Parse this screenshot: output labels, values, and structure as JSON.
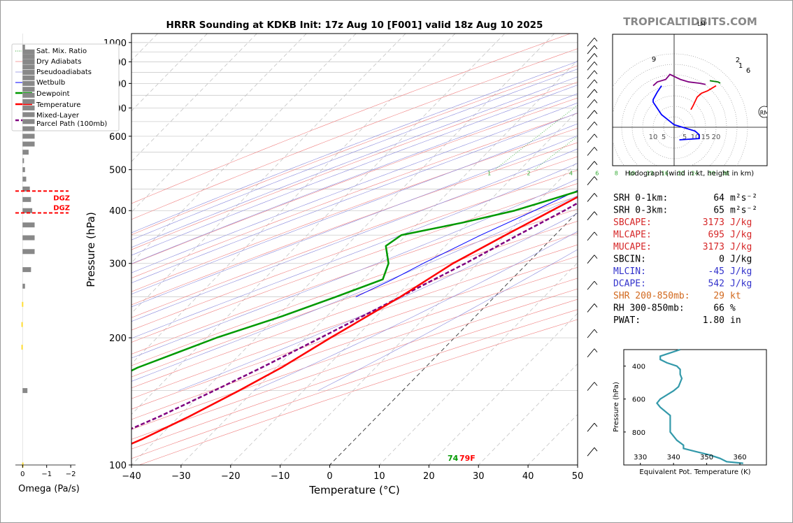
{
  "header": {
    "title": "HRRR Sounding at KDKB Init: 17z Aug 10 [F001] valid 18z Aug 10 2025",
    "watermark": "TROPICALTIDBITS.COM"
  },
  "colors": {
    "temperature": "#ff0000",
    "dewpoint": "#009900",
    "wetbulb": "#0000ff",
    "parcel": "#800080",
    "dry_adiabat": "#f08080",
    "moist_adiabat": "#8a8add",
    "mixing_ratio": "#33aa33",
    "theta_e": "#3399aa",
    "omega_bar": "#888888",
    "omega_yellow": "#ffdd33"
  },
  "chart_data": [
    {
      "type": "line",
      "name": "skew-t",
      "xlabel": "Temperature (°C)",
      "ylabel": "Pressure (hPa)",
      "xlim": [
        -40,
        50
      ],
      "ylim": [
        1050,
        100
      ],
      "y_scale": "log",
      "x_ticks": [
        "−40",
        "−30",
        "−20",
        "−10",
        "0",
        "10",
        "20",
        "30",
        "40",
        "50"
      ],
      "y_ticks": [
        "100",
        "200",
        "300",
        "400",
        "500",
        "600",
        "700",
        "800",
        "900",
        "1000"
      ],
      "legend_position": "top-left",
      "legend": [
        "Sat. Mix. Ratio",
        "Dry Adiabats",
        "Pseudoadiabats",
        "Wetbulb",
        "Dewpoint",
        "Temperature",
        "Mixed-Layer",
        "Parcel Path (100mb)"
      ],
      "mixing_ratio_labels": [
        "1",
        "2",
        "4",
        "6",
        "8",
        "10",
        "13",
        "16",
        "20",
        "24",
        "30",
        "36"
      ],
      "surface_temp_label": "79F",
      "surface_dewpoint_label": "74",
      "series": [
        {
          "name": "Temperature",
          "p": [
            985,
            960,
            930,
            900,
            850,
            800,
            750,
            700,
            650,
            600,
            550,
            500,
            450,
            400,
            350,
            300,
            250,
            200,
            170,
            150,
            130,
            115,
            100
          ],
          "t": [
            26,
            25,
            24.6,
            24,
            22,
            18.4,
            15.6,
            12.6,
            9.6,
            6.8,
            4.4,
            1.8,
            -1.5,
            -5.5,
            -10,
            -15,
            -19,
            -25,
            -29,
            -33,
            -38,
            -43,
            -50
          ]
        },
        {
          "name": "Dewpoint",
          "p": [
            985,
            960,
            930,
            900,
            850,
            800,
            750,
            700,
            650,
            600,
            550,
            500,
            450,
            400,
            375,
            350,
            330,
            300,
            275,
            250,
            225,
            200,
            170,
            150,
            130,
            115,
            100
          ],
          "t": [
            23.5,
            22,
            20,
            18,
            16.5,
            14.5,
            12.5,
            9.4,
            6.5,
            3.8,
            1.7,
            -1,
            -3,
            -13,
            -21,
            -31,
            -32,
            -28,
            -26,
            -32,
            -39,
            -48,
            -58,
            -63,
            -66,
            -70,
            -72
          ]
        },
        {
          "name": "Wetbulb",
          "p": [
            985,
            960,
            930,
            900,
            850,
            800,
            750,
            700,
            650,
            600,
            550,
            500,
            450,
            400,
            350,
            300,
            275,
            250
          ],
          "t": [
            24.2,
            23,
            21.8,
            20.5,
            18.5,
            16,
            13.5,
            10.8,
            8,
            5.2,
            2.4,
            -0.5,
            -4,
            -9,
            -15,
            -21,
            -24,
            -28
          ]
        },
        {
          "name": "Parcel Path",
          "p": [
            985,
            960,
            930,
            900,
            850,
            800,
            750,
            700,
            650,
            600,
            550,
            500,
            450,
            400,
            350,
            300,
            250,
            200,
            170,
            150,
            130,
            115,
            100
          ],
          "t": [
            28.5,
            26,
            23,
            20.3,
            17,
            14.8,
            12.9,
            11,
            9,
            7,
            5,
            3,
            0.5,
            -3,
            -7.5,
            -12.5,
            -19,
            -27,
            -33,
            -38,
            -44,
            -50,
            -58
          ]
        }
      ]
    },
    {
      "type": "bar",
      "name": "omega",
      "xlabel": "Omega (Pa/s)",
      "x_ticks": [
        "0",
        "−1",
        "−2"
      ],
      "xlim": [
        0.3,
        -2.2
      ],
      "dgz_label": "DGZ",
      "dgz_levels": [
        395,
        445
      ],
      "bars": [
        {
          "p": 100,
          "w": -0.02,
          "c": "yellow"
        },
        {
          "p": 150,
          "w": 0.2,
          "c": "grey"
        },
        {
          "p": 190,
          "w": -0.05,
          "c": "yellow"
        },
        {
          "p": 215,
          "w": -0.05,
          "c": "yellow"
        },
        {
          "p": 240,
          "w": 0.0,
          "c": "yellow"
        },
        {
          "p": 265,
          "w": 0.1,
          "c": "grey"
        },
        {
          "p": 290,
          "w": 0.35,
          "c": "grey"
        },
        {
          "p": 320,
          "w": 0.5,
          "c": "grey"
        },
        {
          "p": 345,
          "w": 0.5,
          "c": "grey"
        },
        {
          "p": 370,
          "w": 0.5,
          "c": "grey"
        },
        {
          "p": 400,
          "w": 0.4,
          "c": "grey"
        },
        {
          "p": 425,
          "w": 0.35,
          "c": "grey"
        },
        {
          "p": 450,
          "w": 0.3,
          "c": "grey"
        },
        {
          "p": 475,
          "w": 0.15,
          "c": "grey"
        },
        {
          "p": 500,
          "w": 0.1,
          "c": "grey"
        },
        {
          "p": 525,
          "w": 0.05,
          "c": "grey"
        },
        {
          "p": 550,
          "w": 0.25,
          "c": "grey"
        },
        {
          "p": 575,
          "w": 0.5,
          "c": "grey"
        },
        {
          "p": 600,
          "w": 0.5,
          "c": "grey"
        },
        {
          "p": 625,
          "w": 0.5,
          "c": "grey"
        },
        {
          "p": 650,
          "w": 0.5,
          "c": "grey"
        },
        {
          "p": 675,
          "w": 0.5,
          "c": "grey"
        },
        {
          "p": 700,
          "w": 0.5,
          "c": "grey"
        },
        {
          "p": 725,
          "w": 0.5,
          "c": "grey"
        },
        {
          "p": 750,
          "w": 0.5,
          "c": "grey"
        },
        {
          "p": 775,
          "w": 0.5,
          "c": "grey"
        },
        {
          "p": 800,
          "w": 0.5,
          "c": "grey"
        },
        {
          "p": 825,
          "w": 0.5,
          "c": "grey"
        },
        {
          "p": 850,
          "w": 0.5,
          "c": "grey"
        },
        {
          "p": 875,
          "w": 0.5,
          "c": "grey"
        },
        {
          "p": 900,
          "w": 0.5,
          "c": "grey"
        },
        {
          "p": 925,
          "w": 0.5,
          "c": "grey"
        },
        {
          "p": 950,
          "w": 0.5,
          "c": "grey"
        },
        {
          "p": 975,
          "w": 0.1,
          "c": "grey"
        }
      ]
    },
    {
      "type": "line",
      "name": "hodograph",
      "xlabel": "Hodograph (wind in kt, height in km)",
      "ring_labels": [
        "10",
        "5",
        "5",
        "10",
        "15",
        "20"
      ],
      "height_labels": [
        "1",
        "2",
        "6",
        "9"
      ],
      "storm_motion_labels": [
        "RM",
        "LM"
      ],
      "series": [
        {
          "name": "0-1km",
          "color": "blue",
          "u": [
            2.5,
            12,
            12,
            10,
            0,
            -3,
            -6,
            -10,
            -10,
            -8,
            -6
          ],
          "v": [
            -10,
            -9,
            -6,
            -3,
            2,
            6,
            10,
            20,
            22,
            28,
            33
          ]
        },
        {
          "name": "1-3km",
          "color": "purple",
          "u": [
            -10,
            -8,
            -4,
            -2,
            3,
            7,
            12,
            15
          ],
          "v": [
            33,
            36,
            38,
            42,
            38,
            36,
            35,
            34
          ]
        },
        {
          "name": "3-6km",
          "color": "red",
          "u": [
            8,
            9,
            11,
            13,
            16,
            18,
            20
          ],
          "v": [
            14,
            17,
            24,
            27,
            29,
            31,
            33
          ]
        },
        {
          "name": "6-9km",
          "color": "green",
          "u": [
            17,
            21,
            22
          ],
          "v": [
            37,
            36,
            35
          ]
        }
      ]
    },
    {
      "type": "line",
      "name": "theta-e",
      "xlabel": "Equivalent Pot. Temperature (K)",
      "ylabel": "Pressure (hPa)",
      "x_ticks": [
        "330",
        "340",
        "350",
        "360"
      ],
      "y_ticks": [
        "400",
        "600",
        "800"
      ],
      "xlim": [
        325,
        368
      ],
      "ylim": [
        1000,
        300
      ],
      "series": [
        {
          "name": "theta-e",
          "p": [
            300,
            320,
            340,
            360,
            380,
            400,
            420,
            450,
            475,
            500,
            525,
            550,
            575,
            600,
            625,
            650,
            700,
            750,
            800,
            850,
            880,
            900,
            920,
            940,
            960,
            980,
            990
          ],
          "theta": [
            342,
            339,
            336,
            336,
            338,
            341,
            342,
            342,
            342.5,
            342,
            341.5,
            340,
            338,
            336,
            335,
            336,
            339,
            339,
            339,
            341,
            343,
            343,
            347,
            351,
            354,
            356,
            361
          ]
        }
      ]
    }
  ],
  "indices": [
    {
      "label": "SRH 0-1km:",
      "value": "64",
      "unit": "m²s⁻²",
      "color": "#000000"
    },
    {
      "label": "SRH 0-3km:",
      "value": "65",
      "unit": "m²s⁻²",
      "color": "#000000"
    },
    {
      "label": "SBCAPE:",
      "value": "3173",
      "unit": "J/kg",
      "color": "#d62728"
    },
    {
      "label": "MLCAPE:",
      "value": "695",
      "unit": "J/kg",
      "color": "#d62728"
    },
    {
      "label": "MUCAPE:",
      "value": "3173",
      "unit": "J/kg",
      "color": "#d62728"
    },
    {
      "label": "SBCIN:",
      "value": "0",
      "unit": "J/kg",
      "color": "#000000"
    },
    {
      "label": "MLCIN:",
      "value": "-45",
      "unit": "J/kg",
      "color": "#3333cc"
    },
    {
      "label": "DCAPE:",
      "value": "542",
      "unit": "J/kg",
      "color": "#3333cc"
    },
    {
      "label": "SHR 200-850mb:",
      "value": "29",
      "unit": "kt",
      "color": "#d2691e"
    },
    {
      "label": "RH 300-850mb:",
      "value": "66",
      "unit": "%",
      "color": "#000000"
    },
    {
      "label": "PWAT:",
      "value": "1.80",
      "unit": "in",
      "color": "#000000"
    }
  ],
  "wind_barbs": [
    {
      "p": 105
    },
    {
      "p": 120
    },
    {
      "p": 150
    },
    {
      "p": 180
    },
    {
      "p": 200
    },
    {
      "p": 230
    },
    {
      "p": 260
    },
    {
      "p": 300
    },
    {
      "p": 340
    },
    {
      "p": 380
    },
    {
      "p": 420
    },
    {
      "p": 460
    },
    {
      "p": 500
    },
    {
      "p": 540
    },
    {
      "p": 580
    },
    {
      "p": 620
    },
    {
      "p": 660
    },
    {
      "p": 700
    },
    {
      "p": 740
    },
    {
      "p": 780
    },
    {
      "p": 820
    },
    {
      "p": 860
    },
    {
      "p": 900
    },
    {
      "p": 940
    },
    {
      "p": 980
    }
  ]
}
